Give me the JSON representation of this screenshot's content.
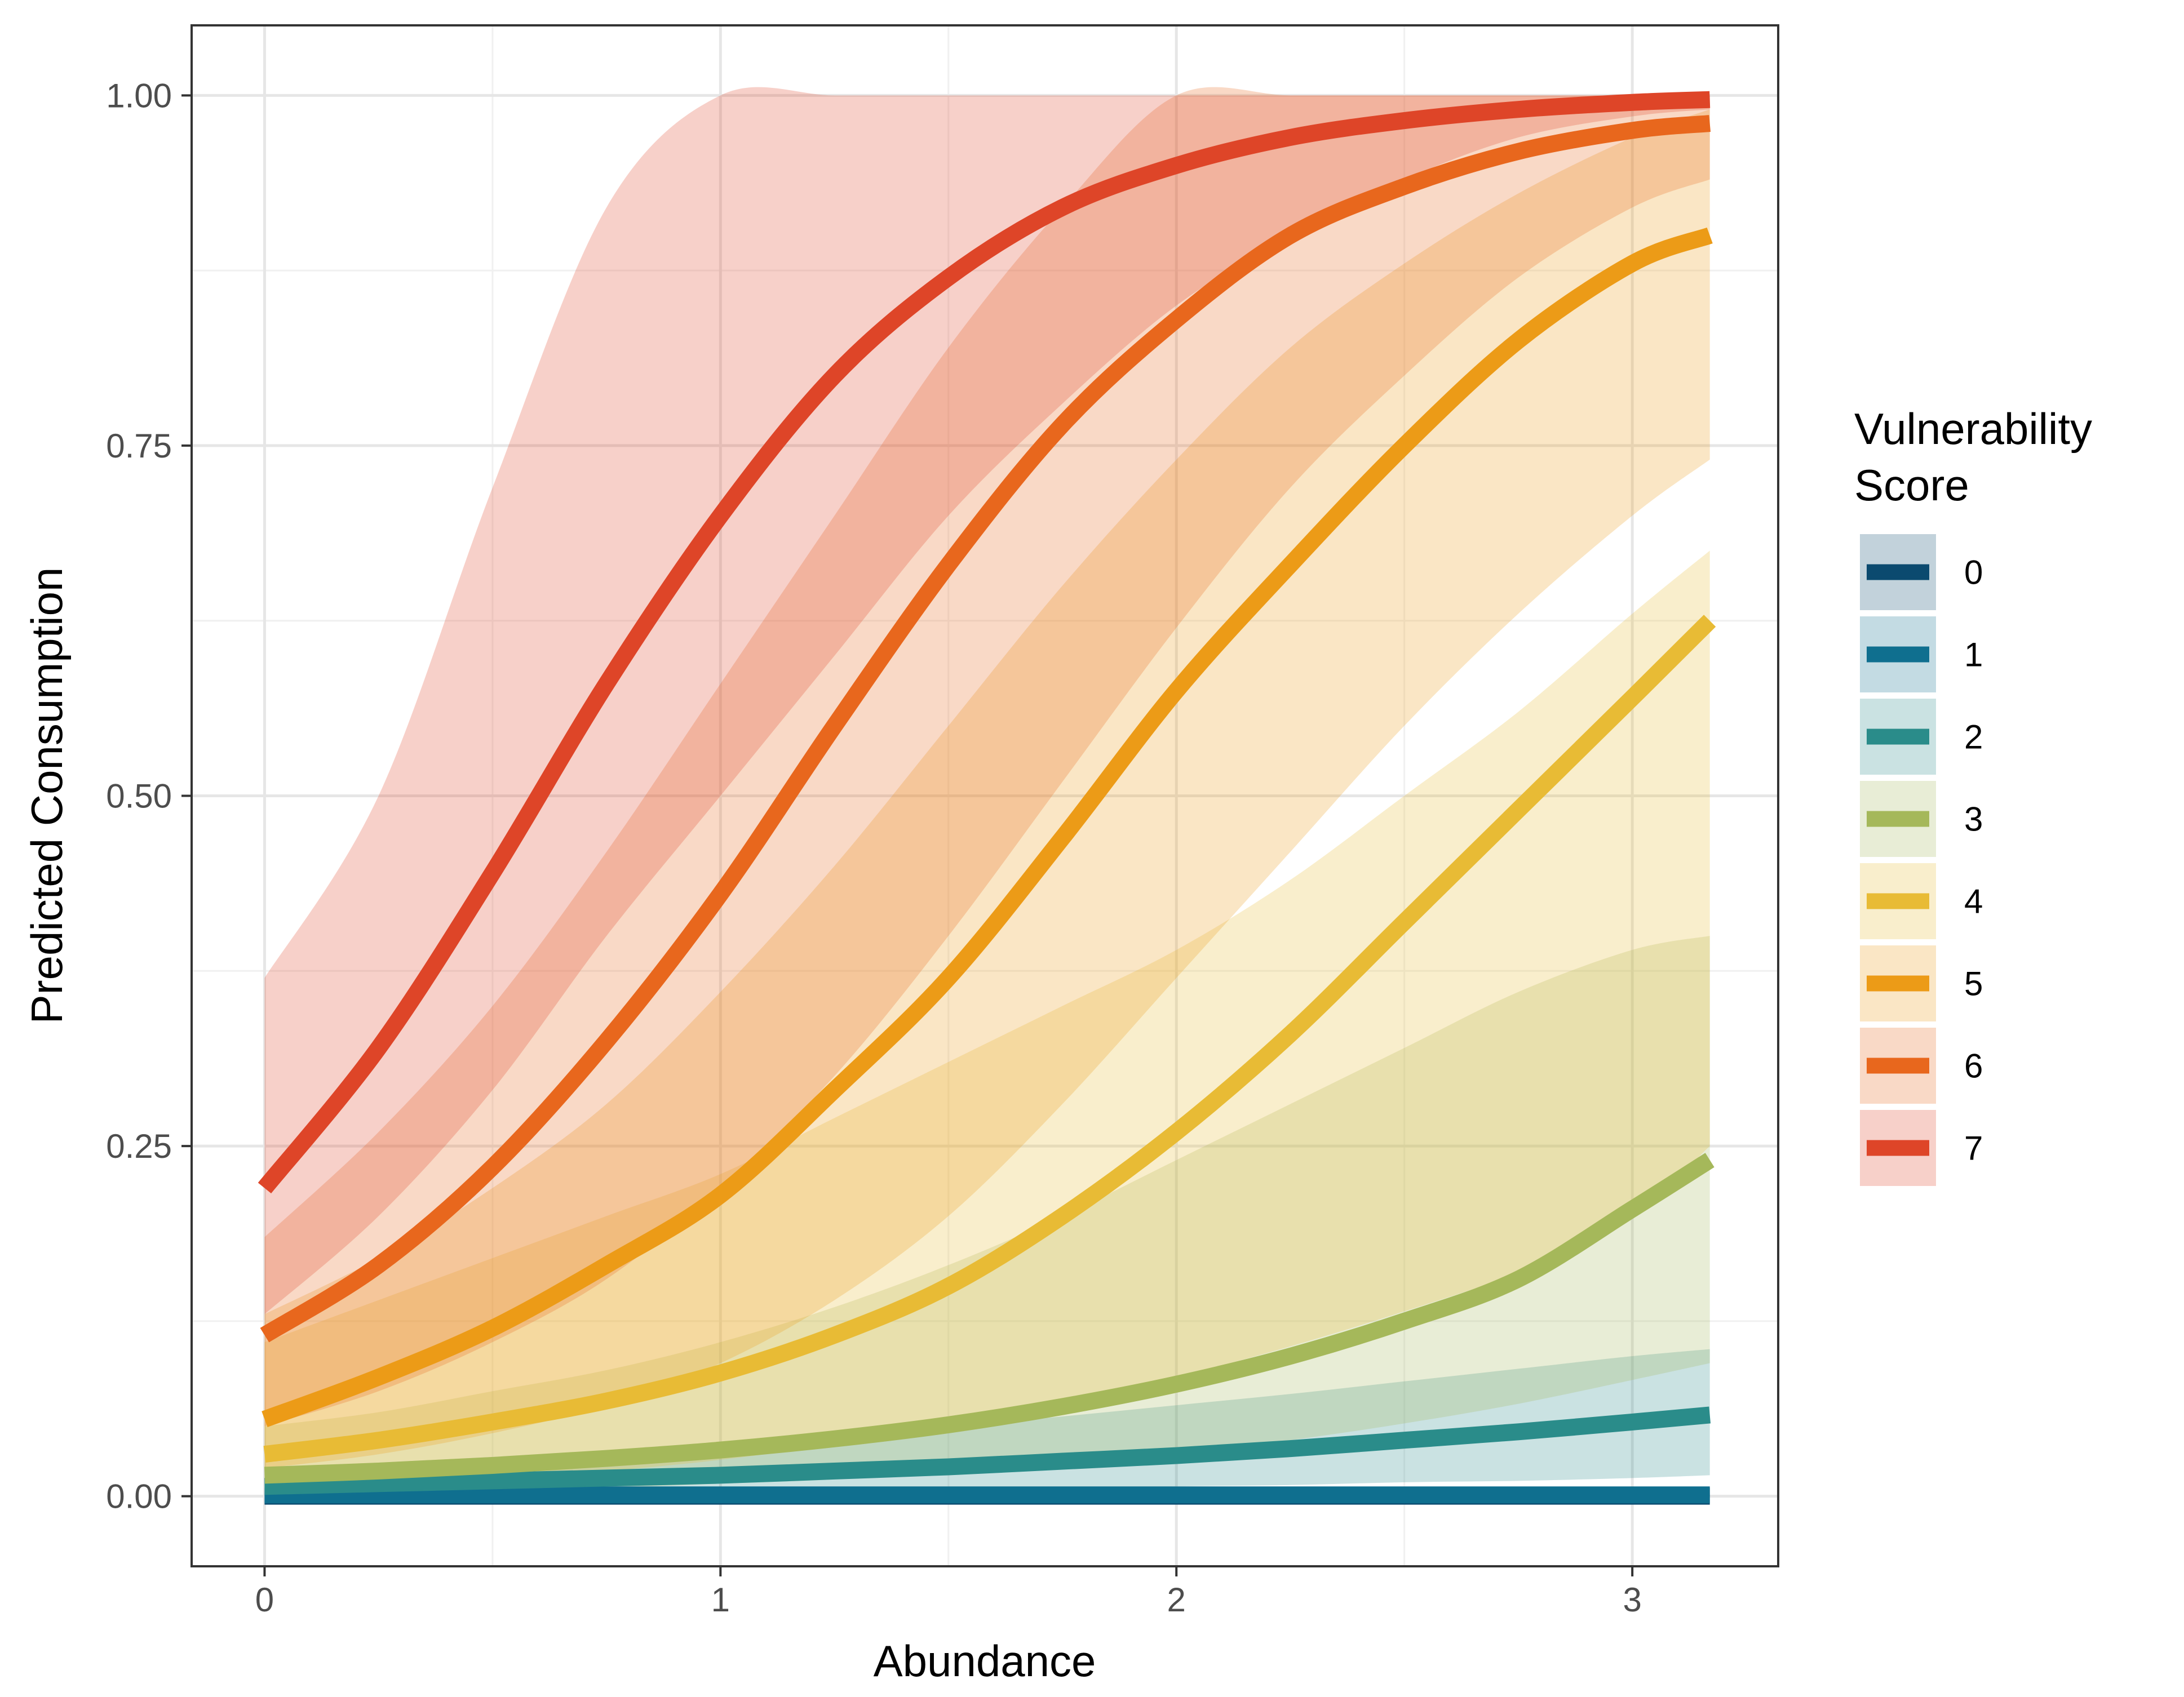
{
  "chart_data": {
    "type": "line",
    "title": "",
    "xlabel": "Abundance",
    "ylabel": "Predicted Consumption",
    "xlim": [
      -0.16,
      3.32
    ],
    "ylim": [
      -0.05,
      1.05
    ],
    "x_ticks": [
      {
        "value": 0,
        "label": "0"
      },
      {
        "value": 1,
        "label": "1"
      },
      {
        "value": 2,
        "label": "2"
      },
      {
        "value": 3,
        "label": "3"
      }
    ],
    "y_ticks": [
      {
        "value": 0,
        "label": "0.00"
      },
      {
        "value": 0.25,
        "label": "0.25"
      },
      {
        "value": 0.5,
        "label": "0.50"
      },
      {
        "value": 0.75,
        "label": "0.75"
      },
      {
        "value": 1,
        "label": "1.00"
      }
    ],
    "grid": true,
    "legend": {
      "title_line1": "Vulnerability",
      "title_line2": "Score",
      "placement": "right"
    },
    "x": [
      0,
      0.25,
      0.5,
      0.75,
      1,
      1.25,
      1.5,
      1.75,
      2,
      2.25,
      2.5,
      2.75,
      3,
      3.17
    ],
    "series": [
      {
        "name": "0",
        "color": "#0b4a6f",
        "values": [
          0,
          0,
          0,
          0,
          0,
          0,
          0,
          0,
          0,
          0,
          0,
          0,
          0,
          0
        ],
        "lower": [
          0,
          0,
          0,
          0,
          0,
          0,
          0,
          0,
          0,
          0,
          0,
          0,
          0,
          0
        ],
        "upper": [
          0.002,
          0.002,
          0.002,
          0.002,
          0.002,
          0.002,
          0.002,
          0.002,
          0.002,
          0.002,
          0.002,
          0.002,
          0.002,
          0.002
        ]
      },
      {
        "name": "1",
        "color": "#0f6f8f",
        "values": [
          0.001,
          0.001,
          0.001,
          0.001,
          0.001,
          0.001,
          0.001,
          0.001,
          0.001,
          0.001,
          0.001,
          0.001,
          0.001,
          0.001
        ],
        "lower": [
          0,
          0,
          0,
          0,
          0,
          0,
          0,
          0,
          0,
          0,
          0,
          0,
          0,
          0
        ],
        "upper": [
          0.004,
          0.005,
          0.005,
          0.006,
          0.006,
          0.006,
          0.006,
          0.006,
          0.006,
          0.006,
          0.006,
          0.006,
          0.006,
          0.006
        ]
      },
      {
        "name": "2",
        "color": "#2a8c8a",
        "values": [
          0.007,
          0.009,
          0.011,
          0.013,
          0.015,
          0.018,
          0.021,
          0.025,
          0.029,
          0.034,
          0.04,
          0.046,
          0.053,
          0.058
        ],
        "lower": [
          0,
          0,
          0.001,
          0.001,
          0.002,
          0.003,
          0.004,
          0.005,
          0.007,
          0.008,
          0.01,
          0.011,
          0.013,
          0.015
        ],
        "upper": [
          0.02,
          0.024,
          0.028,
          0.032,
          0.037,
          0.043,
          0.05,
          0.057,
          0.065,
          0.073,
          0.082,
          0.091,
          0.1,
          0.105
        ]
      },
      {
        "name": "3",
        "color": "#a5b85a",
        "values": [
          0.015,
          0.018,
          0.022,
          0.027,
          0.033,
          0.041,
          0.051,
          0.064,
          0.08,
          0.1,
          0.125,
          0.155,
          0.205,
          0.24
        ],
        "lower": [
          0,
          0.002,
          0.004,
          0.006,
          0.009,
          0.012,
          0.017,
          0.023,
          0.03,
          0.04,
          0.052,
          0.066,
          0.083,
          0.095
        ],
        "upper": [
          0.05,
          0.06,
          0.075,
          0.09,
          0.11,
          0.135,
          0.165,
          0.2,
          0.24,
          0.28,
          0.32,
          0.36,
          0.39,
          0.4
        ]
      },
      {
        "name": "4",
        "color": "#e8bb35",
        "values": [
          0.03,
          0.04,
          0.053,
          0.068,
          0.088,
          0.115,
          0.15,
          0.2,
          0.26,
          0.33,
          0.41,
          0.49,
          0.57,
          0.625
        ],
        "lower": [
          0.005,
          0.008,
          0.012,
          0.018,
          0.026,
          0.037,
          0.05,
          0.066,
          0.085,
          0.107,
          0.132,
          0.16,
          0.2,
          0.25
        ],
        "upper": [
          0.11,
          0.14,
          0.17,
          0.2,
          0.23,
          0.27,
          0.31,
          0.35,
          0.39,
          0.44,
          0.5,
          0.56,
          0.63,
          0.675
        ]
      },
      {
        "name": "5",
        "color": "#ec9b17",
        "values": [
          0.055,
          0.085,
          0.12,
          0.165,
          0.215,
          0.29,
          0.37,
          0.47,
          0.575,
          0.665,
          0.75,
          0.825,
          0.88,
          0.9
        ],
        "lower": [
          0.02,
          0.03,
          0.045,
          0.065,
          0.095,
          0.14,
          0.2,
          0.28,
          0.37,
          0.46,
          0.55,
          0.63,
          0.7,
          0.74
        ],
        "upper": [
          0.13,
          0.17,
          0.22,
          0.28,
          0.36,
          0.45,
          0.55,
          0.65,
          0.74,
          0.82,
          0.88,
          0.93,
          0.97,
          0.99
        ]
      },
      {
        "name": "6",
        "color": "#e8671d",
        "values": [
          0.115,
          0.165,
          0.235,
          0.325,
          0.43,
          0.55,
          0.665,
          0.765,
          0.84,
          0.9,
          0.935,
          0.96,
          0.975,
          0.98
        ],
        "lower": [
          0.05,
          0.075,
          0.11,
          0.155,
          0.22,
          0.3,
          0.4,
          0.51,
          0.62,
          0.72,
          0.8,
          0.87,
          0.92,
          0.94
        ],
        "upper": [
          0.185,
          0.26,
          0.35,
          0.46,
          0.58,
          0.7,
          0.82,
          0.92,
          1,
          1,
          1,
          1,
          1,
          1
        ]
      },
      {
        "name": "7",
        "color": "#de4528",
        "values": [
          0.22,
          0.32,
          0.445,
          0.58,
          0.7,
          0.8,
          0.87,
          0.92,
          0.95,
          0.97,
          0.982,
          0.99,
          0.995,
          0.997
        ],
        "lower": [
          0.13,
          0.2,
          0.29,
          0.4,
          0.5,
          0.6,
          0.7,
          0.78,
          0.85,
          0.9,
          0.94,
          0.97,
          0.985,
          0.99
        ],
        "upper": [
          0.37,
          0.5,
          0.72,
          0.92,
          1,
          1,
          1,
          1,
          1,
          1,
          1,
          1,
          1,
          1
        ]
      }
    ]
  }
}
